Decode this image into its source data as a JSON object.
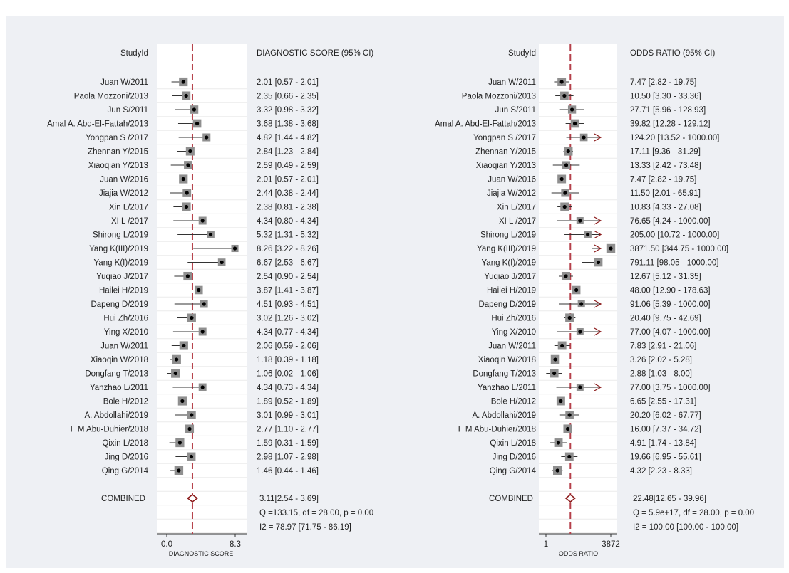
{
  "chart_data": [
    {
      "type": "forest",
      "study_header": "StudyId",
      "ci_header": "DIAGNOSTIC SCORE (95% CI)",
      "xlabel": "DIAGNOSTIC SCORE",
      "ticks": [
        "0.0",
        "8.3"
      ],
      "xlim": [
        0.0,
        8.3
      ],
      "pooled_line": 3.11,
      "studies": [
        {
          "label": "Juan W/2011",
          "est": 2.01,
          "lo": 0.57,
          "hi": 2.01,
          "text": "2.01 [0.57 - 2.01]"
        },
        {
          "label": "Paola Mozzoni/2013",
          "est": 2.35,
          "lo": 0.66,
          "hi": 2.35,
          "text": "2.35 [0.66 - 2.35]"
        },
        {
          "label": "Jun S/2011",
          "est": 3.32,
          "lo": 0.98,
          "hi": 3.32,
          "text": "3.32 [0.98 - 3.32]"
        },
        {
          "label": "Amal A. Abd-El-Fattah/2013",
          "est": 3.68,
          "lo": 1.38,
          "hi": 3.68,
          "text": "3.68 [1.38 - 3.68]"
        },
        {
          "label": "Yongpan S /2017",
          "est": 4.82,
          "lo": 1.44,
          "hi": 4.82,
          "text": "4.82 [1.44 - 4.82]"
        },
        {
          "label": "Zhennan Y/2015",
          "est": 2.84,
          "lo": 1.23,
          "hi": 2.84,
          "text": "2.84 [1.23 - 2.84]"
        },
        {
          "label": "Xiaoqian Y/2013",
          "est": 2.59,
          "lo": 0.49,
          "hi": 2.59,
          "text": "2.59 [0.49 - 2.59]"
        },
        {
          "label": "Juan W/2016",
          "est": 2.01,
          "lo": 0.57,
          "hi": 2.01,
          "text": "2.01 [0.57 - 2.01]"
        },
        {
          "label": "Jiajia W/2012",
          "est": 2.44,
          "lo": 0.38,
          "hi": 2.44,
          "text": "2.44 [0.38 - 2.44]"
        },
        {
          "label": "Xin L/2017",
          "est": 2.38,
          "lo": 0.81,
          "hi": 2.38,
          "text": "2.38 [0.81 - 2.38]"
        },
        {
          "label": "XI L /2017",
          "est": 4.34,
          "lo": 0.8,
          "hi": 4.34,
          "text": "4.34 [0.80 - 4.34]"
        },
        {
          "label": "Shirong L/2019",
          "est": 5.32,
          "lo": 1.31,
          "hi": 5.32,
          "text": "5.32 [1.31 - 5.32]"
        },
        {
          "label": "Yang K(III)/2019",
          "est": 8.26,
          "lo": 3.22,
          "hi": 8.26,
          "text": "8.26 [3.22 - 8.26]"
        },
        {
          "label": "Yang K(I)/2019",
          "est": 6.67,
          "lo": 2.53,
          "hi": 6.67,
          "text": "6.67 [2.53 - 6.67]"
        },
        {
          "label": "Yuqiao J/2017",
          "est": 2.54,
          "lo": 0.9,
          "hi": 2.54,
          "text": "2.54 [0.90 - 2.54]"
        },
        {
          "label": "Hailei H/2019",
          "est": 3.87,
          "lo": 1.41,
          "hi": 3.87,
          "text": "3.87 [1.41 - 3.87]"
        },
        {
          "label": "Dapeng D/2019",
          "est": 4.51,
          "lo": 0.93,
          "hi": 4.51,
          "text": "4.51 [0.93 - 4.51]"
        },
        {
          "label": "Hui Zh/2016",
          "est": 3.02,
          "lo": 1.26,
          "hi": 3.02,
          "text": "3.02 [1.26 - 3.02]"
        },
        {
          "label": "Ying X/2010",
          "est": 4.34,
          "lo": 0.77,
          "hi": 4.34,
          "text": "4.34 [0.77 - 4.34]"
        },
        {
          "label": "Juan W/2011",
          "est": 2.06,
          "lo": 0.59,
          "hi": 2.06,
          "text": "2.06 [0.59 - 2.06]"
        },
        {
          "label": "Xiaoqin W/2018",
          "est": 1.18,
          "lo": 0.39,
          "hi": 1.18,
          "text": "1.18 [0.39 - 1.18]"
        },
        {
          "label": "Dongfang T/2013",
          "est": 1.06,
          "lo": 0.02,
          "hi": 1.06,
          "text": "1.06 [0.02 - 1.06]"
        },
        {
          "label": "Yanzhao L/2011",
          "est": 4.34,
          "lo": 0.73,
          "hi": 4.34,
          "text": "4.34 [0.73 - 4.34]"
        },
        {
          "label": "Bole H/2012",
          "est": 1.89,
          "lo": 0.52,
          "hi": 1.89,
          "text": "1.89 [0.52 - 1.89]"
        },
        {
          "label": "A. Abdollahi/2019",
          "est": 3.01,
          "lo": 0.99,
          "hi": 3.01,
          "text": "3.01 [0.99 - 3.01]"
        },
        {
          "label": "F M Abu-Duhier/2018",
          "est": 2.77,
          "lo": 1.1,
          "hi": 2.77,
          "text": "2.77 [1.10 - 2.77]"
        },
        {
          "label": "Qixin L/2018",
          "est": 1.59,
          "lo": 0.31,
          "hi": 1.59,
          "text": "1.59 [0.31 - 1.59]"
        },
        {
          "label": "Jing D/2016",
          "est": 2.98,
          "lo": 1.07,
          "hi": 2.98,
          "text": "2.98 [1.07 - 2.98]"
        },
        {
          "label": "Qing G/2014",
          "est": 1.46,
          "lo": 0.44,
          "hi": 1.46,
          "text": "1.46 [0.44 - 1.46]"
        }
      ],
      "combined": {
        "label": "COMBINED",
        "est": 3.11,
        "lo": 2.54,
        "hi": 3.69,
        "text": "3.11[2.54 - 3.69]"
      },
      "heterogeneity": [
        "Q =133.15, df = 28.00, p =  0.00",
        "I2 = 78.97 [71.75 - 86.19]"
      ]
    },
    {
      "type": "forest",
      "study_header": "StudyId",
      "ci_header": "ODDS RATIO (95% CI)",
      "xlabel": "ODDS RATIO",
      "ticks": [
        "1",
        "3872"
      ],
      "xlim": [
        1,
        3872
      ],
      "xscale": "log",
      "pooled_line": 22.48,
      "studies": [
        {
          "label": "Juan W/2011",
          "est": 7.47,
          "lo": 2.82,
          "hi": 19.75,
          "text": "7.47 [2.82 - 19.75]"
        },
        {
          "label": "Paola Mozzoni/2013",
          "est": 10.5,
          "lo": 3.3,
          "hi": 33.36,
          "text": "10.50 [3.30 - 33.36]"
        },
        {
          "label": "Jun S/2011",
          "est": 27.71,
          "lo": 5.96,
          "hi": 128.93,
          "text": "27.71 [5.96 - 128.93]"
        },
        {
          "label": "Amal A. Abd-El-Fattah/2013",
          "est": 39.82,
          "lo": 12.28,
          "hi": 129.12,
          "text": "39.82 [12.28 - 129.12]"
        },
        {
          "label": "Yongpan S /2017",
          "est": 124.2,
          "lo": 13.52,
          "hi": 1000.0,
          "text": "124.20 [13.52 - 1000.00]"
        },
        {
          "label": "Zhennan Y/2015",
          "est": 17.11,
          "lo": 9.36,
          "hi": 31.29,
          "text": "17.11 [9.36 - 31.29]"
        },
        {
          "label": "Xiaoqian Y/2013",
          "est": 13.33,
          "lo": 2.42,
          "hi": 73.48,
          "text": "13.33 [2.42 - 73.48]"
        },
        {
          "label": "Juan W/2016",
          "est": 7.47,
          "lo": 2.82,
          "hi": 19.75,
          "text": "7.47 [2.82 - 19.75]"
        },
        {
          "label": "Jiajia W/2012",
          "est": 11.5,
          "lo": 2.01,
          "hi": 65.91,
          "text": "11.50 [2.01 - 65.91]"
        },
        {
          "label": "Xin L/2017",
          "est": 10.83,
          "lo": 4.33,
          "hi": 27.08,
          "text": "10.83 [4.33 - 27.08]"
        },
        {
          "label": "XI L /2017",
          "est": 76.65,
          "lo": 4.24,
          "hi": 1000.0,
          "text": "76.65 [4.24 - 1000.00]"
        },
        {
          "label": "Shirong L/2019",
          "est": 205.0,
          "lo": 10.72,
          "hi": 1000.0,
          "text": "205.00 [10.72 - 1000.00]"
        },
        {
          "label": "Yang K(III)/2019",
          "est": 3871.5,
          "lo": 344.75,
          "hi": 1000.0,
          "text": "3871.50 [344.75 - 1000.00]"
        },
        {
          "label": "Yang K(I)/2019",
          "est": 791.11,
          "lo": 98.05,
          "hi": 1000.0,
          "text": "791.11 [98.05 - 1000.00]"
        },
        {
          "label": "Yuqiao J/2017",
          "est": 12.67,
          "lo": 5.12,
          "hi": 31.35,
          "text": "12.67 [5.12 - 31.35]"
        },
        {
          "label": "Hailei H/2019",
          "est": 48.0,
          "lo": 12.9,
          "hi": 178.63,
          "text": "48.00 [12.90 - 178.63]"
        },
        {
          "label": "Dapeng D/2019",
          "est": 91.06,
          "lo": 5.39,
          "hi": 1000.0,
          "text": "91.06 [5.39 - 1000.00]"
        },
        {
          "label": "Hui Zh/2016",
          "est": 20.4,
          "lo": 9.75,
          "hi": 42.69,
          "text": "20.40 [9.75 - 42.69]"
        },
        {
          "label": "Ying X/2010",
          "est": 77.0,
          "lo": 4.07,
          "hi": 1000.0,
          "text": "77.00 [4.07 - 1000.00]"
        },
        {
          "label": "Juan W/2011",
          "est": 7.83,
          "lo": 2.91,
          "hi": 21.06,
          "text": "7.83 [2.91 - 21.06]"
        },
        {
          "label": "Xiaoqin W/2018",
          "est": 3.26,
          "lo": 2.02,
          "hi": 5.28,
          "text": "3.26 [2.02 - 5.28]"
        },
        {
          "label": "Dongfang T/2013",
          "est": 2.88,
          "lo": 1.03,
          "hi": 8.0,
          "text": "2.88 [1.03 - 8.00]"
        },
        {
          "label": "Yanzhao L/2011",
          "est": 77.0,
          "lo": 3.75,
          "hi": 1000.0,
          "text": "77.00 [3.75 - 1000.00]"
        },
        {
          "label": "Bole H/2012",
          "est": 6.65,
          "lo": 2.55,
          "hi": 17.31,
          "text": "6.65 [2.55 - 17.31]"
        },
        {
          "label": "A. Abdollahi/2019",
          "est": 20.2,
          "lo": 6.02,
          "hi": 67.77,
          "text": "20.20 [6.02 - 67.77]"
        },
        {
          "label": "F M Abu-Duhier/2018",
          "est": 16.0,
          "lo": 7.37,
          "hi": 34.72,
          "text": "16.00 [7.37 - 34.72]"
        },
        {
          "label": "Qixin L/2018",
          "est": 4.91,
          "lo": 1.74,
          "hi": 13.84,
          "text": "4.91 [1.74 - 13.84]"
        },
        {
          "label": "Jing D/2016",
          "est": 19.66,
          "lo": 6.95,
          "hi": 55.61,
          "text": "19.66 [6.95 - 55.61]"
        },
        {
          "label": "Qing G/2014",
          "est": 4.32,
          "lo": 2.23,
          "hi": 8.33,
          "text": "4.32 [2.23 - 8.33]"
        }
      ],
      "combined": {
        "label": "COMBINED",
        "est": 22.48,
        "lo": 12.65,
        "hi": 39.96,
        "text": "22.48[12.65 - 39.96]"
      },
      "heterogeneity": [
        "Q = 5.9e+17, df = 28.00, p =  0.00",
        "I2 = 100.00 [100.00 - 100.00]"
      ]
    }
  ],
  "colors": {
    "background": "#eef0f4",
    "plot_area": "#ffffff",
    "pooled_line": "#b5404a",
    "marker": "#8f8f8f",
    "diamond": "#8b1a1a",
    "text": "#222222"
  }
}
